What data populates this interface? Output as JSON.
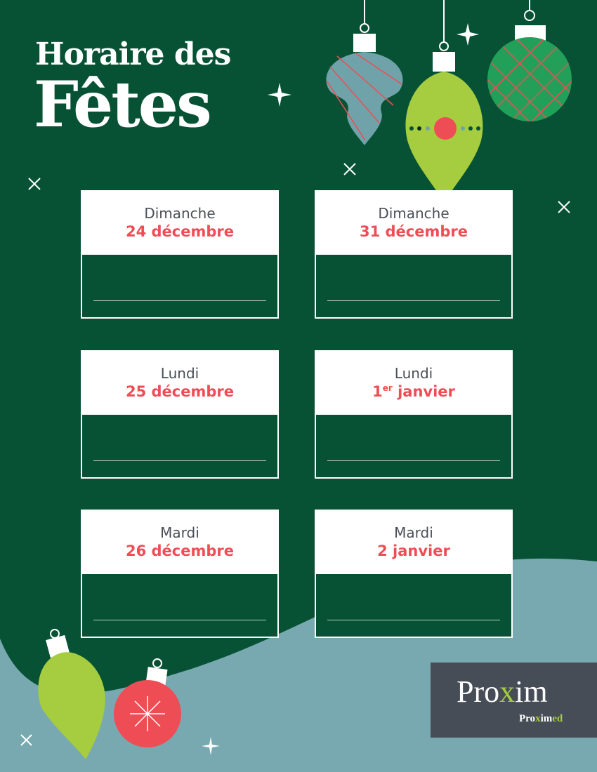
{
  "title": {
    "line1": "Horaire des",
    "line2": "Fêtes"
  },
  "schedule": [
    {
      "day": "Dimanche",
      "date": "24 décembre"
    },
    {
      "day": "Dimanche",
      "date": "31 décembre"
    },
    {
      "day": "Lundi",
      "date": "25 décembre"
    },
    {
      "day": "Lundi",
      "date_num": "1",
      "date_sup": "er",
      "date_rest": " janvier"
    },
    {
      "day": "Mardi",
      "date": "26 décembre"
    },
    {
      "day": "Mardi",
      "date": "2 janvier"
    }
  ],
  "logo": {
    "main_a": "Pro",
    "main_x": "x",
    "main_b": "im",
    "sub_a": "Pro",
    "sub_x": "x",
    "sub_b": "im",
    "sub_c": "ed"
  },
  "colors": {
    "background": "#075235",
    "wave": "#79a9b0",
    "accent_red": "#ef4d55",
    "lime": "#a5cd3f",
    "logo_bg": "#474d56"
  }
}
